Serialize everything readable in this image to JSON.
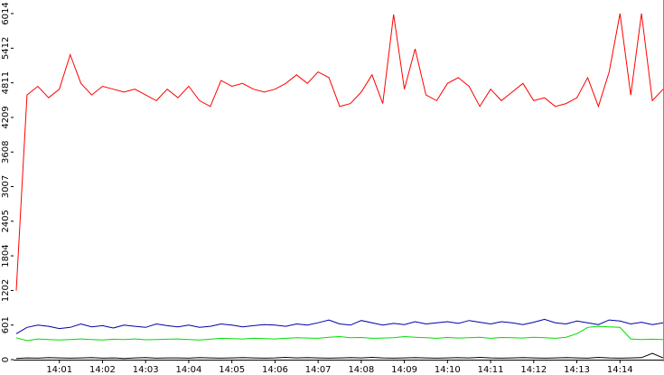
{
  "chart_data": {
    "type": "line",
    "categories": [
      null,
      null,
      null,
      null,
      "14:01",
      null,
      null,
      null,
      "14:02",
      null,
      null,
      null,
      "14:03",
      null,
      null,
      null,
      "14:04",
      null,
      null,
      null,
      "14:05",
      null,
      null,
      null,
      "14:06",
      null,
      null,
      null,
      "14:07",
      null,
      null,
      null,
      "14:08",
      null,
      null,
      null,
      "14:09",
      null,
      null,
      null,
      "14:10",
      null,
      null,
      null,
      "14:11",
      null,
      null,
      null,
      "14:12",
      null,
      null,
      null,
      "14:13",
      null,
      null,
      null,
      "14:14",
      null,
      null,
      null,
      null
    ],
    "series": [
      {
        "color": "#ff0000",
        "values": [
          1200,
          4600,
          4750,
          4550,
          4700,
          5300,
          4800,
          4600,
          4750,
          4700,
          4650,
          4700,
          4600,
          4500,
          4700,
          4550,
          4750,
          4500,
          4400,
          4850,
          4750,
          4800,
          4700,
          4650,
          4700,
          4800,
          4950,
          4800,
          5000,
          4900,
          4400,
          4450,
          4650,
          4950,
          4450,
          6000,
          4700,
          5400,
          4600,
          4500,
          4800,
          4900,
          4750,
          4400,
          4700,
          4500,
          4650,
          4800,
          4500,
          4550,
          4400,
          4450,
          4550,
          4900,
          4400,
          5000,
          6014,
          4600,
          6014,
          4500,
          4700
        ]
      },
      {
        "color": "#0000aa",
        "values": [
          450,
          560,
          600,
          580,
          540,
          560,
          620,
          570,
          590,
          550,
          600,
          580,
          560,
          620,
          590,
          570,
          600,
          560,
          580,
          620,
          600,
          570,
          590,
          610,
          600,
          580,
          620,
          600,
          640,
          690,
          620,
          600,
          680,
          640,
          600,
          630,
          610,
          660,
          620,
          640,
          660,
          630,
          680,
          650,
          620,
          660,
          640,
          610,
          650,
          700,
          640,
          620,
          670,
          640,
          610,
          690,
          670,
          620,
          650,
          610,
          640
        ]
      },
      {
        "color": "#00dd00",
        "values": [
          380,
          330,
          360,
          350,
          340,
          350,
          360,
          350,
          340,
          355,
          350,
          360,
          345,
          350,
          355,
          360,
          350,
          340,
          355,
          370,
          365,
          360,
          370,
          365,
          360,
          370,
          380,
          375,
          370,
          390,
          400,
          380,
          385,
          370,
          375,
          380,
          400,
          390,
          380,
          370,
          385,
          375,
          380,
          390,
          370,
          385,
          380,
          375,
          390,
          380,
          370,
          390,
          450,
          560,
          580,
          570,
          560,
          360,
          350,
          355,
          350
        ]
      },
      {
        "color": "#000000",
        "values": [
          20,
          30,
          25,
          35,
          30,
          25,
          30,
          35,
          25,
          30,
          20,
          30,
          35,
          25,
          30,
          30,
          25,
          35,
          30,
          25,
          30,
          35,
          30,
          25,
          30,
          40,
          30,
          35,
          30,
          25,
          30,
          35,
          30,
          40,
          30,
          25,
          30,
          35,
          30,
          25,
          30,
          35,
          30,
          40,
          30,
          25,
          30,
          35,
          30,
          25,
          30,
          35,
          30,
          25,
          40,
          30,
          25,
          30,
          35,
          110,
          30
        ]
      }
    ],
    "ylim": [
      0,
      6014
    ],
    "yticks": [
      0,
      601,
      1202,
      1804,
      2405,
      3007,
      3608,
      4209,
      4811,
      5412,
      6014
    ]
  }
}
